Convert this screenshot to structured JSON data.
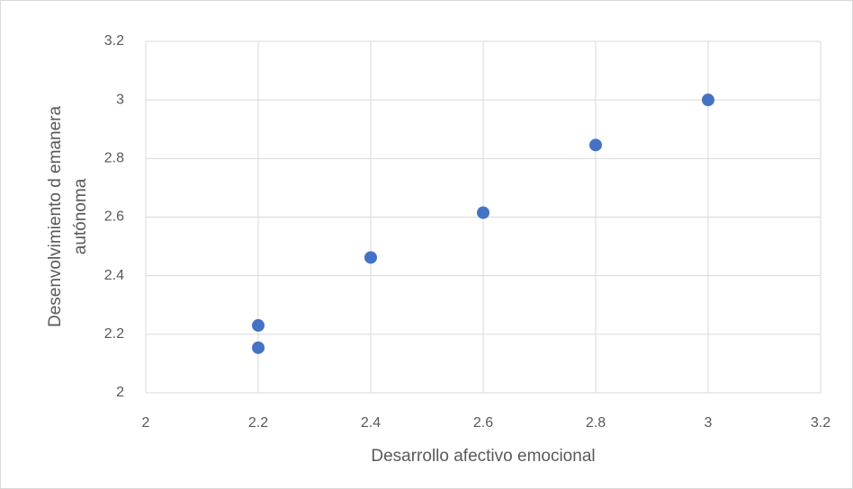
{
  "chart_data": {
    "type": "scatter",
    "xlabel": "Desarrollo afectivo emocional",
    "ylabel": [
      "Desenvolvimiento d emanera",
      "autónoma"
    ],
    "x": [
      2.2,
      2.2,
      2.4,
      2.6,
      2.8,
      3
    ],
    "series": [
      {
        "name": null,
        "color": "#4472c4",
        "values": [
          2.23,
          2.154,
          2.462,
          2.615,
          2.846,
          3
        ]
      }
    ],
    "xlim": [
      2,
      3.2
    ],
    "xticks": [
      2,
      2.2,
      2.4,
      2.6,
      2.8,
      3,
      3.2
    ],
    "ylim": [
      2,
      3.2
    ],
    "yticks": [
      2,
      2.2,
      2.4,
      2.6,
      2.8,
      3,
      3.2
    ],
    "grid": true
  }
}
